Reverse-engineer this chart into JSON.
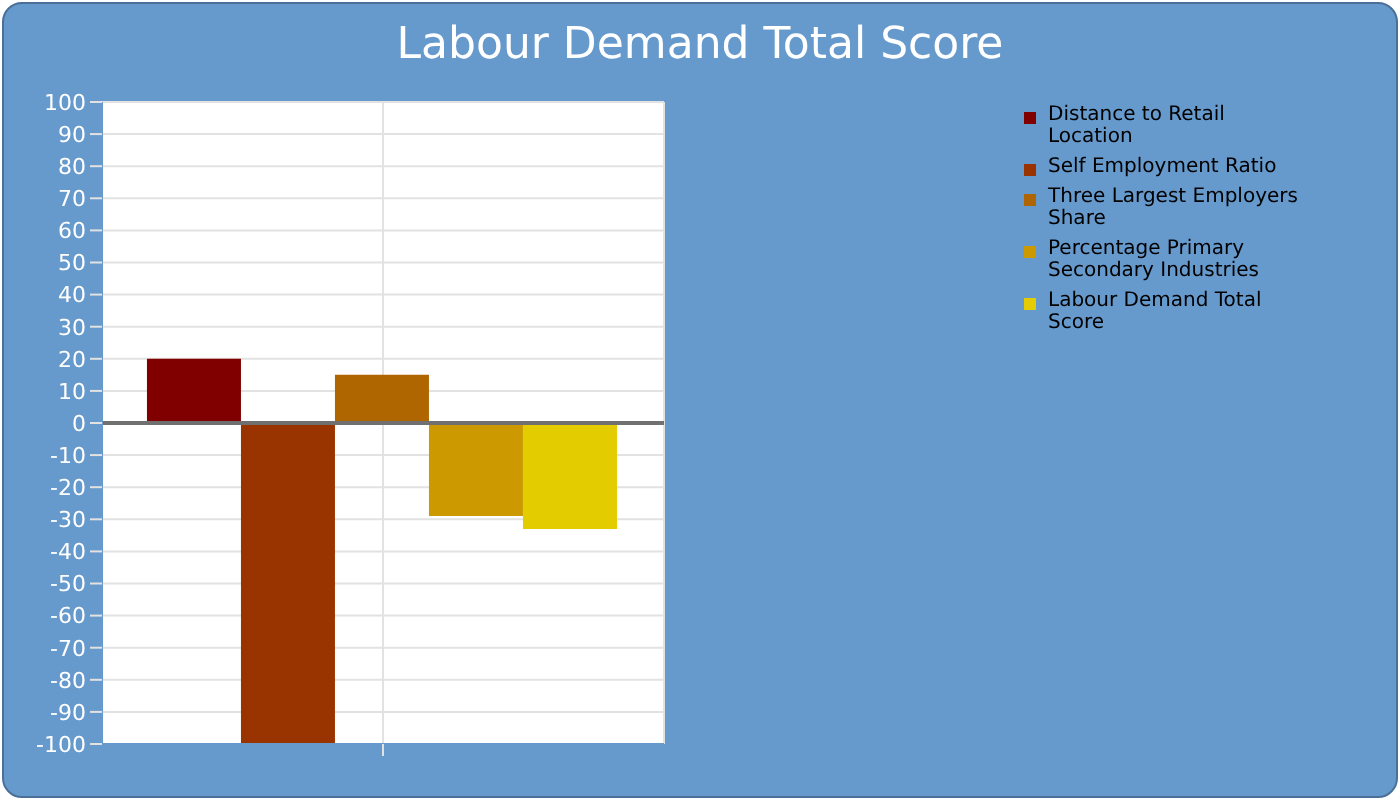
{
  "chart_data": {
    "type": "bar",
    "title": "Labour Demand Total Score",
    "categories": [
      null
    ],
    "series": [
      {
        "name": "Distance to Retail Location",
        "color": "#800000",
        "values": [
          20
        ]
      },
      {
        "name": "Self Employment Ratio",
        "color": "#993300",
        "values": [
          -100
        ]
      },
      {
        "name": "Three Largest Employers Share",
        "color": "#b06600",
        "values": [
          15
        ]
      },
      {
        "name": "Percentage Primary Secondary Industries",
        "color": "#cc9900",
        "values": [
          -29
        ]
      },
      {
        "name": "Labour Demand Total Score",
        "color": "#e3cc00",
        "values": [
          -33
        ]
      }
    ],
    "ylim": [
      -100,
      100
    ],
    "yticks": [
      -100,
      -90,
      -80,
      -70,
      -60,
      -50,
      -40,
      -30,
      -20,
      -10,
      0,
      10,
      20,
      30,
      40,
      50,
      60,
      70,
      80,
      90,
      100
    ],
    "ref_lines": [
      {
        "axis": "y",
        "value": 0,
        "color": "#707070"
      }
    ],
    "grid": true,
    "legend": "top right"
  }
}
